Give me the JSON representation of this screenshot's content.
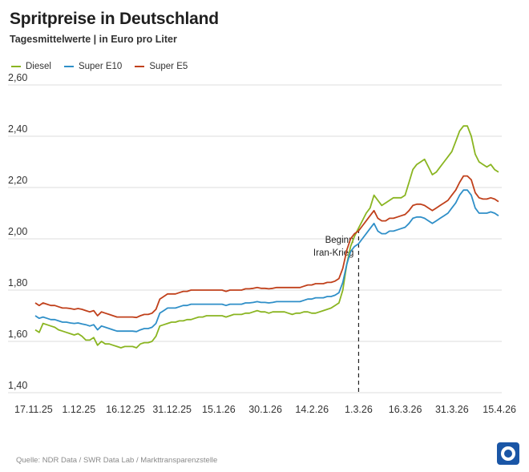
{
  "title": "Spritpreise in Deutschland",
  "subtitle": "Tagesmittelwerte | in Euro pro Liter",
  "source": "Quelle: NDR Data / SWR Data Lab / Markttransparenzstelle",
  "chart_data": {
    "type": "line",
    "title": "Spritpreise in Deutschland",
    "subtitle": "Tagesmittelwerte | in Euro pro Liter",
    "x_start": "17.11.25",
    "x_end": "15.4.26",
    "x_ticks": [
      "17.11.25",
      "1.12.25",
      "16.12.25",
      "31.12.25",
      "15.1.26",
      "30.1.26",
      "14.2.26",
      "1.3.26",
      "16.3.26",
      "31.3.26",
      "15.4.26"
    ],
    "ylim": [
      1.4,
      2.6
    ],
    "y_ticks": [
      "1,40",
      "1,60",
      "1,80",
      "2,00",
      "2,20",
      "2,40",
      "2,60"
    ],
    "y_tick_values": [
      1.4,
      1.6,
      1.8,
      2.0,
      2.2,
      2.4,
      2.6
    ],
    "grid": true,
    "legend": "top-left",
    "annotation": {
      "x": "1.3.26",
      "line1": "Beginn",
      "line2": "Iran-Krieg"
    },
    "series": [
      {
        "name": "Diesel",
        "color": "#8ab521",
        "values": [
          1.645,
          1.635,
          1.67,
          1.665,
          1.66,
          1.655,
          1.645,
          1.64,
          1.635,
          1.63,
          1.625,
          1.63,
          1.62,
          1.605,
          1.605,
          1.615,
          1.585,
          1.6,
          1.59,
          1.59,
          1.585,
          1.58,
          1.575,
          1.58,
          1.58,
          1.58,
          1.575,
          1.59,
          1.595,
          1.595,
          1.6,
          1.62,
          1.66,
          1.665,
          1.67,
          1.675,
          1.675,
          1.68,
          1.68,
          1.685,
          1.685,
          1.69,
          1.695,
          1.695,
          1.7,
          1.7,
          1.7,
          1.7,
          1.7,
          1.695,
          1.7,
          1.705,
          1.705,
          1.705,
          1.71,
          1.71,
          1.715,
          1.72,
          1.715,
          1.715,
          1.71,
          1.715,
          1.715,
          1.715,
          1.715,
          1.71,
          1.705,
          1.71,
          1.71,
          1.715,
          1.715,
          1.71,
          1.71,
          1.715,
          1.72,
          1.725,
          1.73,
          1.74,
          1.75,
          1.8,
          1.9,
          1.97,
          2.01,
          2.04,
          2.07,
          2.1,
          2.12,
          2.17,
          2.15,
          2.13,
          2.14,
          2.15,
          2.16,
          2.16,
          2.16,
          2.17,
          2.22,
          2.27,
          2.29,
          2.3,
          2.31,
          2.28,
          2.25,
          2.26,
          2.28,
          2.3,
          2.32,
          2.34,
          2.38,
          2.42,
          2.44,
          2.44,
          2.4,
          2.33,
          2.3,
          2.29,
          2.28,
          2.29,
          2.27,
          2.26
        ]
      },
      {
        "name": "Super E10",
        "color": "#2f8fc8",
        "values": [
          1.7,
          1.69,
          1.695,
          1.69,
          1.685,
          1.685,
          1.68,
          1.675,
          1.675,
          1.672,
          1.67,
          1.672,
          1.668,
          1.665,
          1.66,
          1.665,
          1.645,
          1.66,
          1.655,
          1.65,
          1.645,
          1.64,
          1.64,
          1.64,
          1.64,
          1.64,
          1.638,
          1.645,
          1.65,
          1.65,
          1.655,
          1.67,
          1.71,
          1.72,
          1.73,
          1.73,
          1.73,
          1.735,
          1.74,
          1.74,
          1.745,
          1.745,
          1.745,
          1.745,
          1.745,
          1.745,
          1.745,
          1.745,
          1.745,
          1.74,
          1.745,
          1.745,
          1.745,
          1.745,
          1.75,
          1.75,
          1.752,
          1.755,
          1.752,
          1.752,
          1.75,
          1.752,
          1.755,
          1.755,
          1.755,
          1.755,
          1.755,
          1.755,
          1.755,
          1.76,
          1.765,
          1.765,
          1.77,
          1.77,
          1.77,
          1.775,
          1.775,
          1.78,
          1.79,
          1.83,
          1.9,
          1.95,
          1.97,
          1.98,
          2.0,
          2.02,
          2.04,
          2.06,
          2.03,
          2.02,
          2.02,
          2.03,
          2.03,
          2.035,
          2.04,
          2.045,
          2.06,
          2.08,
          2.085,
          2.085,
          2.08,
          2.07,
          2.06,
          2.07,
          2.08,
          2.09,
          2.1,
          2.12,
          2.14,
          2.17,
          2.19,
          2.19,
          2.17,
          2.12,
          2.1,
          2.1,
          2.1,
          2.105,
          2.1,
          2.09
        ]
      },
      {
        "name": "Super E5",
        "color": "#c0401b",
        "values": [
          1.75,
          1.74,
          1.75,
          1.745,
          1.74,
          1.74,
          1.735,
          1.73,
          1.73,
          1.728,
          1.725,
          1.728,
          1.725,
          1.72,
          1.715,
          1.72,
          1.7,
          1.715,
          1.71,
          1.705,
          1.7,
          1.695,
          1.695,
          1.695,
          1.695,
          1.695,
          1.693,
          1.7,
          1.705,
          1.705,
          1.71,
          1.725,
          1.765,
          1.775,
          1.785,
          1.785,
          1.785,
          1.79,
          1.795,
          1.795,
          1.8,
          1.8,
          1.8,
          1.8,
          1.8,
          1.8,
          1.8,
          1.8,
          1.8,
          1.795,
          1.8,
          1.8,
          1.8,
          1.8,
          1.805,
          1.805,
          1.807,
          1.81,
          1.807,
          1.807,
          1.805,
          1.807,
          1.81,
          1.81,
          1.81,
          1.81,
          1.81,
          1.81,
          1.81,
          1.815,
          1.82,
          1.82,
          1.825,
          1.825,
          1.825,
          1.83,
          1.83,
          1.835,
          1.845,
          1.885,
          1.955,
          2.0,
          2.02,
          2.03,
          2.05,
          2.07,
          2.09,
          2.11,
          2.08,
          2.07,
          2.07,
          2.08,
          2.08,
          2.085,
          2.09,
          2.095,
          2.11,
          2.13,
          2.135,
          2.135,
          2.13,
          2.12,
          2.11,
          2.12,
          2.13,
          2.14,
          2.15,
          2.17,
          2.19,
          2.22,
          2.245,
          2.245,
          2.23,
          2.18,
          2.16,
          2.155,
          2.155,
          2.16,
          2.155,
          2.145
        ]
      }
    ]
  }
}
